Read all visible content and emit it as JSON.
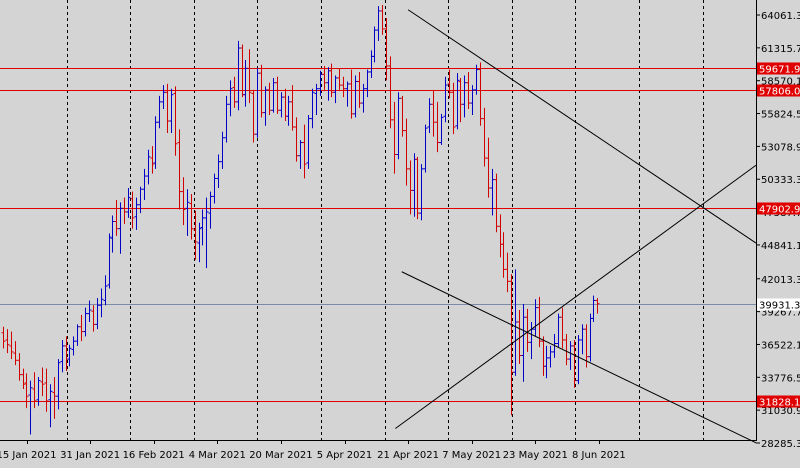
{
  "chart_data": {
    "type": "bar",
    "subtype": "ohlc",
    "title": "",
    "xlabel": "",
    "ylabel": "",
    "ylim": [
      27810,
      65400
    ],
    "grid": "vertical-dashed",
    "colors": {
      "background": "#d4d4d4",
      "bull": "#0000c8",
      "bear": "#d00000",
      "level": "#e00000",
      "trendline": "#000000",
      "price_line": "#7a8aa8",
      "grid": "#000000"
    },
    "y_ticks": [
      "64061.30",
      "61315.70",
      "58570.10",
      "55824.50",
      "53078.90",
      "50333.30",
      "47587.70",
      "44841.10",
      "42013.30",
      "39267.70",
      "36522.10",
      "33776.50",
      "31030.90",
      "28285.30"
    ],
    "y_tick_values": [
      64061.3,
      61315.7,
      58570.1,
      55824.5,
      53078.9,
      50333.3,
      47587.7,
      44841.1,
      42013.3,
      39267.7,
      36522.1,
      33776.5,
      31030.9,
      28285.3
    ],
    "x_ticks": [
      "15 Jan 2021",
      "31 Jan 2021",
      "16 Feb 2021",
      "4 Mar 2021",
      "20 Mar 2021",
      "5 Apr 2021",
      "21 Apr 2021",
      "7 May 2021",
      "23 May 2021",
      "8 Jun 2021"
    ],
    "levels": [
      {
        "label": "59671.91",
        "value": 59671.91
      },
      {
        "label": "57806.09",
        "value": 57806.09
      },
      {
        "label": "47902.90",
        "value": 47902.9
      },
      {
        "label": "31828.16",
        "value": 31828.16
      }
    ],
    "current_price": {
      "label": "39931.33",
      "value": 39931.33
    },
    "trendlines": [
      {
        "from": [
          6,
          64500
        ],
        "to": [
          40,
          45000
        ]
      },
      {
        "from": [
          5.8,
          29500
        ],
        "to": [
          40,
          51500
        ]
      },
      {
        "from": [
          5.9,
          42600
        ],
        "to": [
          40,
          28300
        ]
      }
    ],
    "ohlc": [
      [
        37500,
        38000,
        36200,
        36800
      ],
      [
        36900,
        37800,
        35800,
        36500
      ],
      [
        36400,
        37600,
        35300,
        35900
      ],
      [
        35800,
        36800,
        34800,
        35200
      ],
      [
        35200,
        35800,
        33500,
        34000
      ],
      [
        34000,
        34500,
        32800,
        33200
      ],
      [
        33300,
        34100,
        31200,
        32200
      ],
      [
        32300,
        33500,
        29000,
        32900
      ],
      [
        32800,
        34200,
        31200,
        31800
      ],
      [
        31900,
        33800,
        31400,
        33500
      ],
      [
        33400,
        34600,
        32200,
        33200
      ],
      [
        33300,
        34500,
        30900,
        31800
      ],
      [
        31900,
        33200,
        29600,
        32600
      ],
      [
        32500,
        33800,
        30300,
        32200
      ],
      [
        32200,
        35300,
        31100,
        35000
      ],
      [
        35100,
        36900,
        34200,
        36400
      ],
      [
        36400,
        37200,
        34300,
        35300
      ],
      [
        35300,
        36500,
        34700,
        36200
      ],
      [
        36100,
        37200,
        35600,
        36800
      ],
      [
        36800,
        38200,
        36400,
        38000
      ],
      [
        38000,
        39000,
        36800,
        37600
      ],
      [
        37600,
        39600,
        37200,
        39100
      ],
      [
        39100,
        40200,
        38400,
        39400
      ],
      [
        39300,
        39800,
        37600,
        38200
      ],
      [
        38200,
        40400,
        37800,
        39800
      ],
      [
        39800,
        41200,
        38800,
        40300
      ],
      [
        40200,
        42300,
        39800,
        41400
      ],
      [
        41500,
        45800,
        41200,
        45500
      ],
      [
        45400,
        47300,
        44200,
        46800
      ],
      [
        46800,
        48600,
        45600,
        46200
      ],
      [
        46200,
        48400,
        44100,
        47900
      ],
      [
        47900,
        48800,
        46600,
        47600
      ],
      [
        47600,
        49600,
        47100,
        48800
      ],
      [
        48700,
        49300,
        46200,
        47100
      ],
      [
        47200,
        48800,
        46100,
        48200
      ],
      [
        48200,
        49700,
        47500,
        49500
      ],
      [
        49500,
        51200,
        48600,
        50600
      ],
      [
        50600,
        52800,
        49900,
        52200
      ],
      [
        52100,
        53100,
        50800,
        51600
      ],
      [
        51700,
        55600,
        51200,
        55100
      ],
      [
        55100,
        57300,
        54600,
        56800
      ],
      [
        56800,
        58200,
        56200,
        57600
      ],
      [
        57600,
        58300,
        54200,
        55200
      ],
      [
        55200,
        57900,
        54200,
        57400
      ],
      [
        57500,
        58100,
        52300,
        53300
      ],
      [
        53400,
        54500,
        47800,
        49300
      ],
      [
        49300,
        50500,
        46500,
        47800
      ],
      [
        47900,
        49500,
        45600,
        48400
      ],
      [
        48300,
        49100,
        45300,
        46200
      ],
      [
        46100,
        47700,
        43600,
        45100
      ],
      [
        45000,
        46700,
        43400,
        46200
      ],
      [
        46300,
        47800,
        44800,
        47100
      ],
      [
        47100,
        48800,
        42900,
        47600
      ],
      [
        47500,
        49300,
        46200,
        48900
      ],
      [
        48900,
        50800,
        48300,
        50400
      ],
      [
        50400,
        52400,
        49600,
        51800
      ],
      [
        51800,
        54300,
        51200,
        53800
      ],
      [
        53800,
        57300,
        53400,
        56600
      ],
      [
        56600,
        58600,
        55600,
        57900
      ],
      [
        58000,
        58900,
        56300,
        56800
      ],
      [
        56800,
        61900,
        56100,
        61300
      ],
      [
        61300,
        61600,
        57200,
        57400
      ],
      [
        57400,
        60300,
        56400,
        59600
      ],
      [
        59600,
        61200,
        56700,
        57600
      ],
      [
        57500,
        57800,
        53400,
        54100
      ],
      [
        54100,
        59600,
        53800,
        59200
      ],
      [
        59200,
        59900,
        55500,
        55900
      ],
      [
        55900,
        58100,
        54800,
        57800
      ],
      [
        57800,
        58400,
        55700,
        56100
      ],
      [
        56100,
        58800,
        55900,
        58400
      ],
      [
        58400,
        58900,
        55800,
        56100
      ],
      [
        56100,
        57600,
        55500,
        57200
      ],
      [
        57200,
        57900,
        55200,
        55600
      ],
      [
        55600,
        57300,
        54800,
        56800
      ],
      [
        56800,
        58200,
        54400,
        54700
      ],
      [
        54700,
        55500,
        51800,
        52300
      ],
      [
        52300,
        53600,
        51200,
        53400
      ],
      [
        53400,
        54900,
        50400,
        51600
      ],
      [
        51700,
        55700,
        51200,
        55400
      ],
      [
        55400,
        57900,
        54600,
        57600
      ],
      [
        57500,
        58300,
        55700,
        57900
      ],
      [
        57900,
        59400,
        57300,
        59100
      ],
      [
        59100,
        59800,
        57800,
        58400
      ],
      [
        58400,
        59700,
        56900,
        59400
      ],
      [
        59400,
        60000,
        57200,
        57600
      ],
      [
        57600,
        59000,
        56700,
        58800
      ],
      [
        58800,
        59600,
        57800,
        58200
      ],
      [
        58200,
        58900,
        57200,
        57900
      ],
      [
        57900,
        58500,
        56400,
        58300
      ],
      [
        58300,
        59500,
        55400,
        55800
      ],
      [
        55800,
        59000,
        55500,
        58500
      ],
      [
        58500,
        59300,
        56300,
        56700
      ],
      [
        56700,
        58300,
        55900,
        57900
      ],
      [
        57900,
        59500,
        57200,
        59300
      ],
      [
        59300,
        61100,
        58800,
        60600
      ],
      [
        60600,
        63100,
        60100,
        62800
      ],
      [
        62800,
        64800,
        61900,
        64400
      ],
      [
        64400,
        64900,
        62400,
        62900
      ],
      [
        62900,
        63800,
        58600,
        59800
      ],
      [
        59800,
        60600,
        54600,
        55300
      ],
      [
        55300,
        56800,
        50800,
        52400
      ],
      [
        52400,
        57600,
        52000,
        57100
      ],
      [
        57100,
        57300,
        53900,
        54400
      ],
      [
        54400,
        55400,
        49800,
        51200
      ],
      [
        51200,
        51900,
        47400,
        49400
      ],
      [
        49400,
        52500,
        47200,
        52000
      ],
      [
        52000,
        52200,
        47000,
        47500
      ],
      [
        47500,
        51600,
        46900,
        51200
      ],
      [
        51200,
        54900,
        50900,
        54600
      ],
      [
        54700,
        57100,
        54200,
        56600
      ],
      [
        56600,
        57800,
        53900,
        55100
      ],
      [
        55100,
        56800,
        52600,
        53400
      ],
      [
        53400,
        55800,
        53200,
        55500
      ],
      [
        55600,
        58900,
        55100,
        58200
      ],
      [
        58300,
        59500,
        57100,
        57600
      ],
      [
        57600,
        58400,
        54100,
        54700
      ],
      [
        54800,
        59200,
        54500,
        58600
      ],
      [
        58500,
        58800,
        55100,
        56600
      ],
      [
        56600,
        59000,
        55500,
        58400
      ],
      [
        58400,
        59300,
        56200,
        56700
      ],
      [
        56700,
        58200,
        55700,
        57800
      ],
      [
        57800,
        59900,
        57400,
        59500
      ],
      [
        59500,
        60100,
        54800,
        55400
      ],
      [
        55400,
        56300,
        51400,
        52100
      ],
      [
        52100,
        53800,
        48800,
        49600
      ],
      [
        49600,
        51200,
        47300,
        50300
      ],
      [
        50300,
        50800,
        45900,
        46400
      ],
      [
        46400,
        47400,
        43800,
        44900
      ],
      [
        44900,
        45900,
        42100,
        42800
      ],
      [
        42800,
        44200,
        40900,
        41800
      ],
      [
        41800,
        42400,
        30600,
        34200
      ],
      [
        34200,
        42800,
        33900,
        38400
      ],
      [
        38400,
        39400,
        34900,
        35600
      ],
      [
        35600,
        39900,
        33400,
        38800
      ],
      [
        38800,
        39500,
        35900,
        36700
      ],
      [
        36700,
        38400,
        35300,
        37800
      ],
      [
        37800,
        40300,
        37200,
        39600
      ],
      [
        39600,
        40500,
        36300,
        36800
      ],
      [
        36800,
        37200,
        33900,
        34700
      ],
      [
        34700,
        36400,
        33700,
        35400
      ],
      [
        35400,
        36400,
        34600,
        35900
      ],
      [
        35900,
        37400,
        35400,
        36600
      ],
      [
        36600,
        39100,
        36300,
        38800
      ],
      [
        38800,
        39600,
        36200,
        36900
      ],
      [
        36900,
        37400,
        34800,
        35300
      ],
      [
        35300,
        36800,
        34400,
        36400
      ],
      [
        36400,
        36900,
        32900,
        33500
      ],
      [
        33500,
        37300,
        33200,
        36900
      ],
      [
        36900,
        38200,
        35700,
        37800
      ],
      [
        37800,
        38200,
        34600,
        35500
      ],
      [
        35500,
        39100,
        35100,
        38700
      ],
      [
        38700,
        40600,
        38400,
        40200
      ],
      [
        40200,
        40400,
        39100,
        39931.33
      ]
    ]
  }
}
